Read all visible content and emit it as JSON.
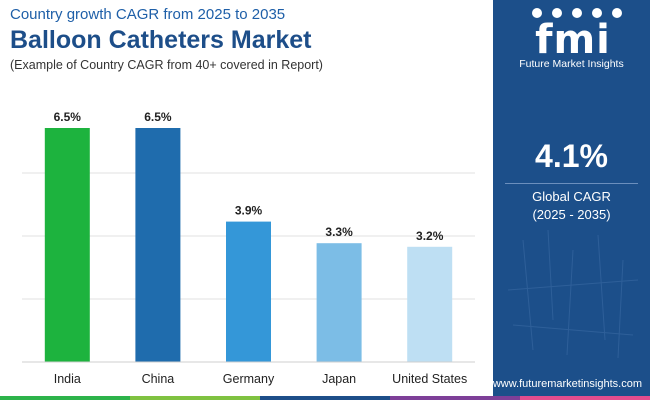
{
  "header": {
    "subtitle_top": "Country growth CAGR from 2025 to 2035",
    "title": "Balloon Catheters Market",
    "note": "(Example of Country CAGR from 40+ covered in Report)"
  },
  "panel": {
    "brand": "Future Market Insights",
    "logo_letters": "fmi",
    "global_value": "4.1%",
    "global_label": "Global CAGR",
    "global_period": "(2025 - 2035)",
    "website": "www.futuremarketinsights.com",
    "background_color": "#1c4f8a"
  },
  "chart_data": {
    "type": "bar",
    "categories": [
      "India",
      "China",
      "Germany",
      "Japan",
      "United States"
    ],
    "values": [
      6.5,
      6.5,
      3.9,
      3.3,
      3.2
    ],
    "data_labels": [
      "6.5%",
      "6.5%",
      "3.9%",
      "3.3%",
      "3.2%"
    ],
    "colors": [
      "#1db33e",
      "#1f6cad",
      "#3497d8",
      "#7cbde6",
      "#bedff3"
    ],
    "ylim": [
      0,
      7
    ],
    "grid": true,
    "legend": "none"
  },
  "bottom_strip_colors": [
    "#2db34a",
    "#7fc241",
    "#1d4e89",
    "#7e3f98",
    "#e34d8e"
  ]
}
